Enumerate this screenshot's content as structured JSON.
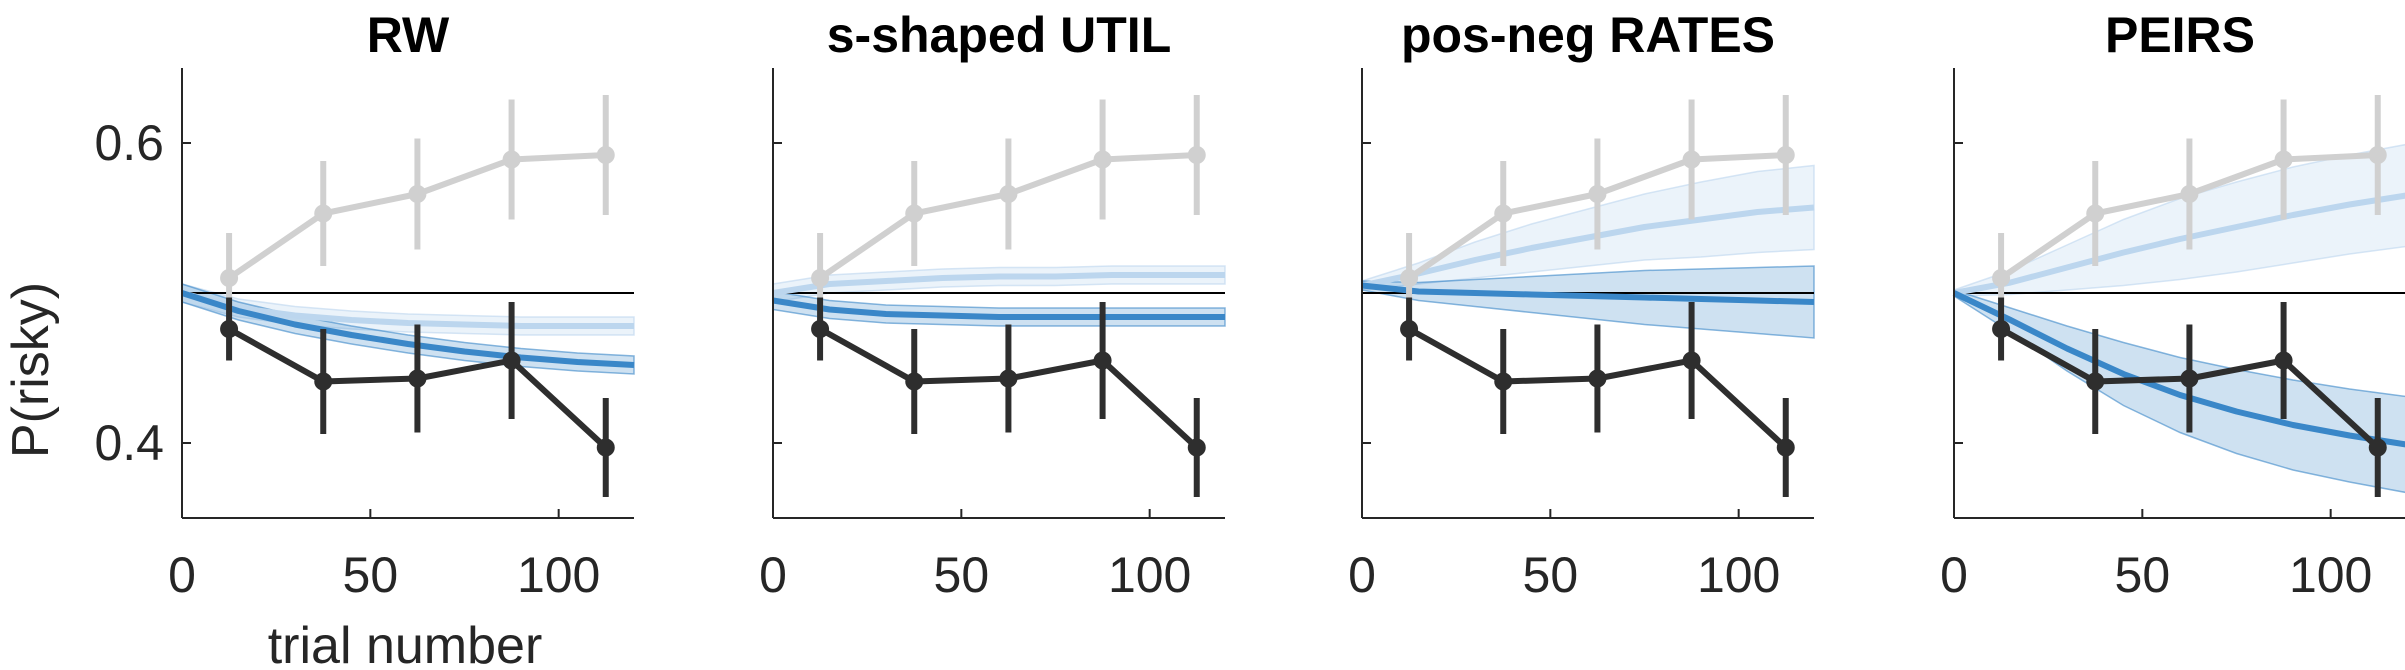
{
  "figure": {
    "ylabel": "P(risky)",
    "xlabel": "trial number",
    "colors": {
      "gray": "#d0d0d0",
      "dark": "#2e2e2e",
      "blue": "#3a87c8",
      "lightblue": "#bcd6ee",
      "axis": "#262626"
    }
  },
  "chart_data": [
    {
      "type": "line",
      "title": "RW",
      "xlabel": "trial number",
      "ylabel": "P(risky)",
      "xlim": [
        0,
        120
      ],
      "ylim": [
        0.35,
        0.65
      ],
      "xticks": [
        0,
        50,
        100
      ],
      "yticks": [
        0.4,
        0.6
      ],
      "reference_line": 0.5,
      "observed": {
        "x": [
          12.5,
          37.5,
          62.5,
          87.5,
          112.5
        ],
        "gray": {
          "y": [
            0.51,
            0.553,
            0.566,
            0.589,
            0.592
          ],
          "err": [
            0.03,
            0.035,
            0.037,
            0.04,
            0.04
          ]
        },
        "dark": {
          "y": [
            0.476,
            0.441,
            0.443,
            0.455,
            0.397
          ],
          "err": [
            0.021,
            0.035,
            0.036,
            0.039,
            0.033
          ]
        }
      },
      "model": {
        "x": [
          0,
          15,
          30,
          45,
          60,
          75,
          90,
          105,
          120
        ],
        "light": {
          "y": [
            0.5,
            0.49,
            0.485,
            0.482,
            0.48,
            0.479,
            0.478,
            0.478,
            0.478
          ],
          "band": [
            0.006,
            0.006,
            0.006,
            0.006,
            0.006,
            0.006,
            0.006,
            0.006,
            0.006
          ]
        },
        "dark": {
          "y": [
            0.5,
            0.488,
            0.479,
            0.472,
            0.466,
            0.461,
            0.457,
            0.454,
            0.452
          ],
          "band": [
            0.006,
            0.006,
            0.006,
            0.006,
            0.006,
            0.006,
            0.006,
            0.006,
            0.006
          ]
        }
      }
    },
    {
      "type": "line",
      "title": "s-shaped UTIL",
      "xlim": [
        0,
        120
      ],
      "ylim": [
        0.35,
        0.65
      ],
      "xticks": [
        0,
        50,
        100
      ],
      "yticks": [
        0.4,
        0.6
      ],
      "reference_line": 0.5,
      "observed": {
        "x": [
          12.5,
          37.5,
          62.5,
          87.5,
          112.5
        ],
        "gray": {
          "y": [
            0.51,
            0.553,
            0.566,
            0.589,
            0.592
          ],
          "err": [
            0.03,
            0.035,
            0.037,
            0.04,
            0.04
          ]
        },
        "dark": {
          "y": [
            0.476,
            0.441,
            0.443,
            0.455,
            0.397
          ],
          "err": [
            0.021,
            0.035,
            0.036,
            0.039,
            0.033
          ]
        }
      },
      "model": {
        "x": [
          0,
          15,
          30,
          45,
          60,
          75,
          90,
          105,
          120
        ],
        "light": {
          "y": [
            0.5,
            0.506,
            0.508,
            0.51,
            0.511,
            0.511,
            0.512,
            0.512,
            0.512
          ],
          "band": [
            0.006,
            0.006,
            0.006,
            0.006,
            0.006,
            0.006,
            0.006,
            0.006,
            0.006
          ]
        },
        "dark": {
          "y": [
            0.495,
            0.489,
            0.486,
            0.485,
            0.484,
            0.484,
            0.484,
            0.484,
            0.484
          ],
          "band": [
            0.006,
            0.006,
            0.006,
            0.006,
            0.006,
            0.006,
            0.006,
            0.006,
            0.006
          ]
        }
      }
    },
    {
      "type": "line",
      "title": "pos-neg RATES",
      "xlim": [
        0,
        120
      ],
      "ylim": [
        0.35,
        0.65
      ],
      "xticks": [
        0,
        50,
        100
      ],
      "yticks": [
        0.4,
        0.6
      ],
      "reference_line": 0.5,
      "observed": {
        "x": [
          12.5,
          37.5,
          62.5,
          87.5,
          112.5
        ],
        "gray": {
          "y": [
            0.51,
            0.553,
            0.566,
            0.589,
            0.592
          ],
          "err": [
            0.03,
            0.035,
            0.037,
            0.04,
            0.04
          ]
        },
        "dark": {
          "y": [
            0.476,
            0.441,
            0.443,
            0.455,
            0.397
          ],
          "err": [
            0.021,
            0.035,
            0.036,
            0.039,
            0.033
          ]
        }
      },
      "model": {
        "x": [
          0,
          15,
          30,
          45,
          60,
          75,
          90,
          105,
          120
        ],
        "light": {
          "y": [
            0.505,
            0.513,
            0.522,
            0.53,
            0.537,
            0.544,
            0.549,
            0.554,
            0.557
          ],
          "band": [
            0.003,
            0.007,
            0.012,
            0.016,
            0.019,
            0.022,
            0.025,
            0.027,
            0.028
          ]
        },
        "dark": {
          "y": [
            0.505,
            0.501,
            0.5,
            0.499,
            0.498,
            0.497,
            0.496,
            0.495,
            0.494
          ],
          "band": [
            0.003,
            0.006,
            0.009,
            0.012,
            0.015,
            0.018,
            0.02,
            0.022,
            0.024
          ]
        }
      }
    },
    {
      "type": "line",
      "title": "PEIRS",
      "xlim": [
        0,
        120
      ],
      "ylim": [
        0.35,
        0.65
      ],
      "xticks": [
        0,
        50,
        100
      ],
      "yticks": [
        0.4,
        0.6
      ],
      "reference_line": 0.5,
      "observed": {
        "x": [
          12.5,
          37.5,
          62.5,
          87.5,
          112.5
        ],
        "gray": {
          "y": [
            0.51,
            0.553,
            0.566,
            0.589,
            0.592
          ],
          "err": [
            0.03,
            0.035,
            0.037,
            0.04,
            0.04
          ]
        },
        "dark": {
          "y": [
            0.476,
            0.441,
            0.443,
            0.455,
            0.397
          ],
          "err": [
            0.021,
            0.035,
            0.036,
            0.039,
            0.033
          ]
        }
      },
      "model": {
        "x": [
          0,
          15,
          30,
          45,
          60,
          75,
          90,
          105,
          120
        ],
        "light": {
          "y": [
            0.5,
            0.507,
            0.517,
            0.527,
            0.536,
            0.544,
            0.552,
            0.559,
            0.565
          ],
          "band": [
            0.002,
            0.008,
            0.015,
            0.022,
            0.027,
            0.03,
            0.032,
            0.033,
            0.034
          ]
        },
        "dark": {
          "y": [
            0.5,
            0.482,
            0.463,
            0.446,
            0.432,
            0.421,
            0.412,
            0.405,
            0.399
          ],
          "band": [
            0.002,
            0.008,
            0.015,
            0.021,
            0.025,
            0.028,
            0.03,
            0.031,
            0.032
          ]
        }
      }
    }
  ]
}
